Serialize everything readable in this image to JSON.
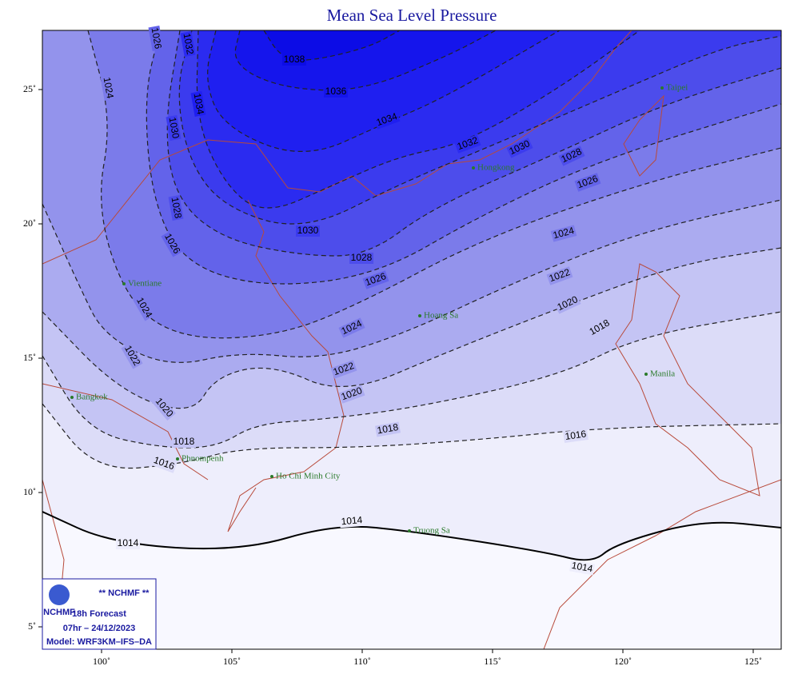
{
  "title": "Mean Sea Level Pressure",
  "x_axis": {
    "ticks": [
      {
        "value": 100,
        "label": "100˚"
      },
      {
        "value": 105,
        "label": "105˚"
      },
      {
        "value": 110,
        "label": "110˚"
      },
      {
        "value": 115,
        "label": "115˚"
      },
      {
        "value": 120,
        "label": "120˚"
      },
      {
        "value": 125,
        "label": "125˚"
      }
    ]
  },
  "y_axis": {
    "ticks": [
      {
        "value": 25,
        "label": "25˚"
      },
      {
        "value": 20,
        "label": "20˚"
      },
      {
        "value": 15,
        "label": "15˚"
      },
      {
        "value": 10,
        "label": "10˚"
      },
      {
        "value": 5,
        "label": "5˚"
      }
    ]
  },
  "contours": [
    "1014",
    "1016",
    "1018",
    "1020",
    "1022",
    "1024",
    "1026",
    "1028",
    "1030",
    "1032",
    "1034",
    "1036",
    "1038"
  ],
  "places": [
    "Taipei",
    "Hongkong",
    "Vientiane",
    "Hoang Sa",
    "Manila",
    "Bangkok",
    "Phnompenh",
    "Ho Chi Minh City",
    "Truong Sa"
  ],
  "info": {
    "agency": "** NCHMF **",
    "logo": "NCHMF",
    "forecast": "18h Forecast",
    "time": "07hr – 24/12/2023",
    "model": "Model: WRF3KM–IFS–DA"
  }
}
